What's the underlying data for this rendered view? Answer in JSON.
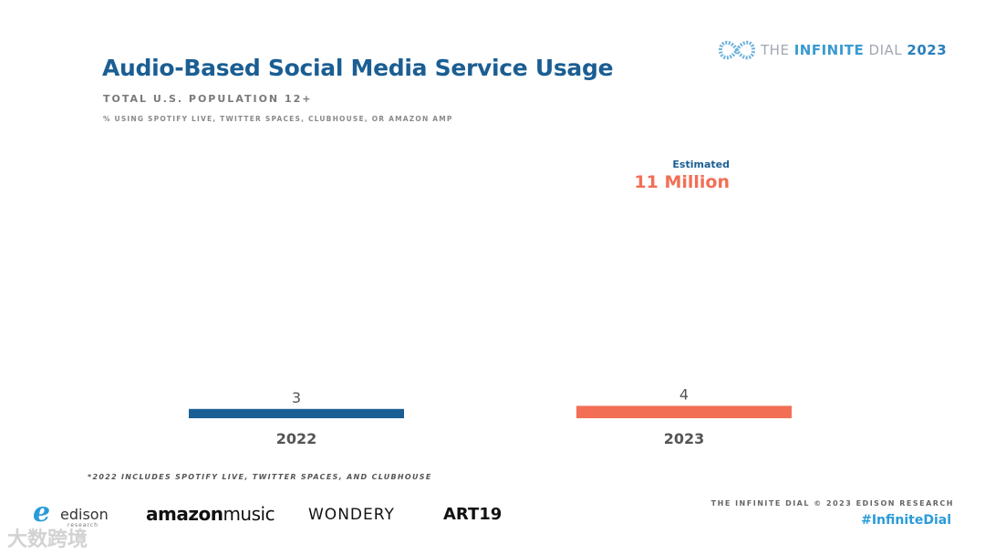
{
  "header": {
    "title": "Audio-Based Social Media Service Usage",
    "subtitle": "TOTAL U.S. POPULATION 12+",
    "note": "% USING SPOTIFY LIVE, TWITTER SPACES, CLUBHOUSE, OR AMAZON AMP"
  },
  "brand": {
    "part1": "THE ",
    "part2": "INFINITE",
    "part3": " DIAL",
    "year": "2023"
  },
  "callout": {
    "label": "Estimated",
    "value": "11 Million"
  },
  "chart_data": {
    "type": "bar",
    "title": "Audio-Based Social Media Service Usage",
    "xlabel": "",
    "ylabel": "",
    "categories": [
      "2022",
      "2023"
    ],
    "values": [
      3,
      4
    ],
    "value_labels": [
      "3",
      "4"
    ],
    "colors": [
      "#1b5e93",
      "#f26f55"
    ],
    "ylim": [
      0,
      40
    ],
    "grid": false
  },
  "footer": {
    "footnote": "*2022 INCLUDES SPOTIFY LIVE, TWITTER SPACES, AND CLUBHOUSE",
    "copyright": "THE INFINITE DIAL   © 2023 EDISON RESEARCH",
    "hashtag": "#InfiniteDial",
    "logos": {
      "edison": "edison",
      "edison_sub": "research",
      "amazon_a": "amazon",
      "amazon_b": "music",
      "wondery": "WONDERY",
      "art19": "ART19"
    },
    "watermark": "大数跨境"
  }
}
